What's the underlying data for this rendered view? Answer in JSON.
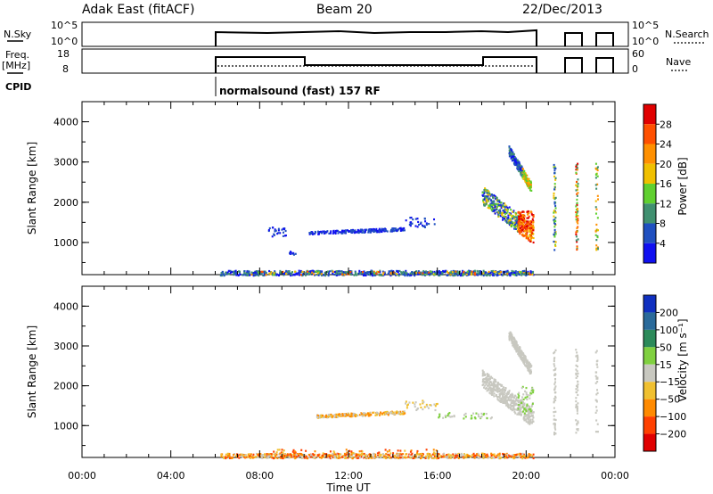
{
  "header": {
    "station": "Adak East (fitACF)",
    "beam": "Beam 20",
    "date": "22/Dec/2013"
  },
  "top_panels": {
    "nsky_label": "N.Sky",
    "nsky_ticks": [
      "10^5",
      "10^0"
    ],
    "nsearch_label": "N.Search",
    "nsearch_ticks": [
      "10^5",
      "10^0"
    ],
    "freq_label": "Freq.",
    "freq_unit": "[MHz]",
    "freq_ticks": [
      "18",
      "8"
    ],
    "nave_label": "Nave",
    "nave_ticks": [
      "60",
      "0"
    ],
    "cpid_label": "CPID",
    "cpid_value": "normalsound (fast) 157 RF"
  },
  "chart_data": [
    {
      "type": "heatmap",
      "name": "power",
      "ylabel": "Slant Range [km]",
      "yticks": [
        "4000",
        "3000",
        "2000",
        "1000"
      ],
      "ylim": [
        200,
        4500
      ],
      "xticks": [
        "00:00",
        "04:00",
        "08:00",
        "12:00",
        "16:00",
        "20:00",
        "00:00"
      ],
      "xlim_hours": [
        0,
        24
      ],
      "colorbar_label": "Power [dB]",
      "colorbar_ticks": [
        "28",
        "24",
        "20",
        "16",
        "12",
        "8",
        "4"
      ],
      "colorbar_colors": [
        "#e00000",
        "#ff5000",
        "#ff9000",
        "#f0c000",
        "#60d030",
        "#409070",
        "#2050c0",
        "#1010f0"
      ]
    },
    {
      "type": "heatmap",
      "name": "velocity",
      "ylabel": "Slant Range [km]",
      "yticks": [
        "4000",
        "3000",
        "2000",
        "1000"
      ],
      "ylim": [
        200,
        4500
      ],
      "xticks": [
        "00:00",
        "04:00",
        "08:00",
        "12:00",
        "16:00",
        "20:00",
        "00:00"
      ],
      "xlabel": "Time UT",
      "xlim_hours": [
        0,
        24
      ],
      "colorbar_label": "Velocity [m s⁻¹]",
      "colorbar_ticks": [
        "200",
        "100",
        "50",
        "15",
        "−15",
        "−50",
        "−100",
        "−200"
      ],
      "colorbar_colors": [
        "#1030c0",
        "#2a6a9a",
        "#2c8a5a",
        "#80d040",
        "#c8c8c0",
        "#f0c030",
        "#ff8a00",
        "#ff4000",
        "#e00000"
      ]
    }
  ]
}
